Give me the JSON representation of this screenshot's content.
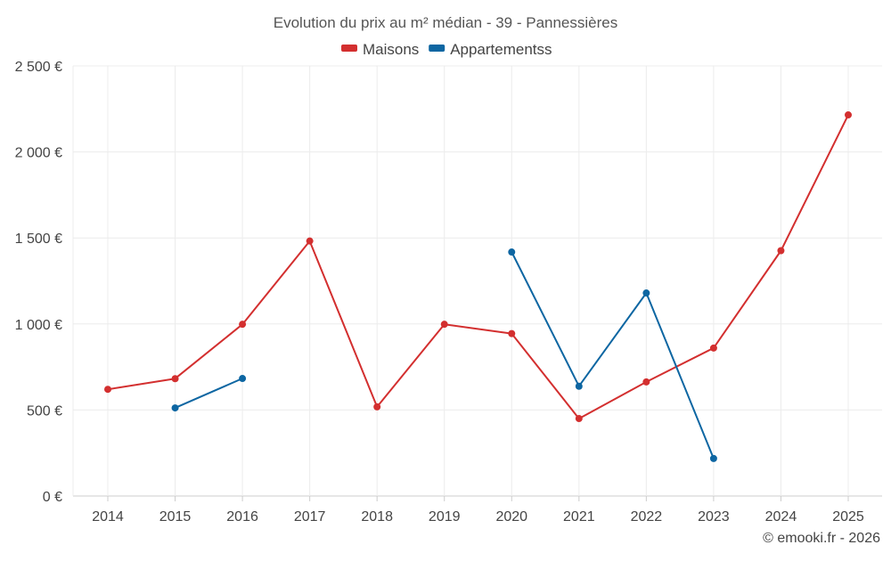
{
  "chart_data": {
    "type": "line",
    "title": "Evolution du prix au m² médian - 39 - Pannessières",
    "categories": [
      "2014",
      "2015",
      "2016",
      "2017",
      "2018",
      "2019",
      "2020",
      "2021",
      "2022",
      "2023",
      "2024",
      "2025"
    ],
    "series": [
      {
        "name": "Maisons",
        "color": "#d32f2f",
        "values": [
          620,
          682,
          998,
          1482,
          518,
          998,
          944,
          450,
          663,
          860,
          1426,
          2215
        ]
      },
      {
        "name": "Appartementss",
        "color": "#0d66a2",
        "values": [
          null,
          512,
          683,
          null,
          null,
          null,
          1418,
          638,
          1180,
          218,
          null,
          null
        ]
      }
    ],
    "y_ticks": [
      "0 €",
      "500 €",
      "1 000 €",
      "1 500 €",
      "2 000 €",
      "2 500 €"
    ],
    "y_tick_values": [
      0,
      500,
      1000,
      1500,
      2000,
      2500
    ],
    "ylim": [
      0,
      2500
    ],
    "grid": true,
    "legend": "top-center",
    "credit": "© emooki.fr - 2026"
  }
}
